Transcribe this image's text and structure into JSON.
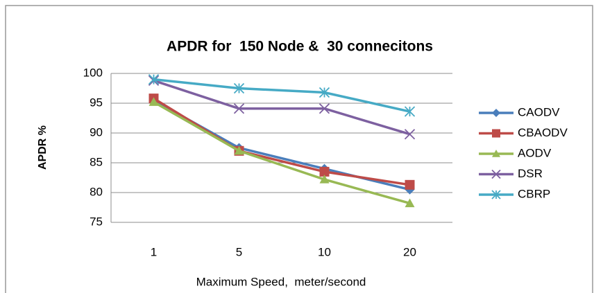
{
  "chart_data": {
    "type": "line",
    "title": "APDR for  150 Node &  30 connecitons",
    "x_label": "Maximum Speed,  meter/second",
    "y_label": "APDR %",
    "categories": [
      "1",
      "5",
      "10",
      "20"
    ],
    "series": [
      {
        "name": "CAODV",
        "color": "#4a7ebb",
        "marker": "diamond",
        "values": [
          95.5,
          87.5,
          84,
          80.5
        ]
      },
      {
        "name": "CBAODV",
        "color": "#be4b48",
        "marker": "square",
        "values": [
          95.8,
          87,
          83.5,
          81.3
        ]
      },
      {
        "name": "AODV",
        "color": "#98b954",
        "marker": "triangle",
        "values": [
          95.2,
          87,
          82.2,
          78.2
        ]
      },
      {
        "name": "DSR",
        "color": "#7d60a0",
        "marker": "x",
        "values": [
          98.8,
          94.1,
          94.1,
          89.8
        ]
      },
      {
        "name": "CBRP",
        "color": "#46aac5",
        "marker": "star",
        "values": [
          99,
          97.5,
          96.8,
          93.6
        ]
      }
    ],
    "ylim": [
      75,
      100
    ],
    "yticks": [
      75,
      80,
      85,
      90,
      95,
      100
    ],
    "grid": true,
    "legend": "right"
  }
}
